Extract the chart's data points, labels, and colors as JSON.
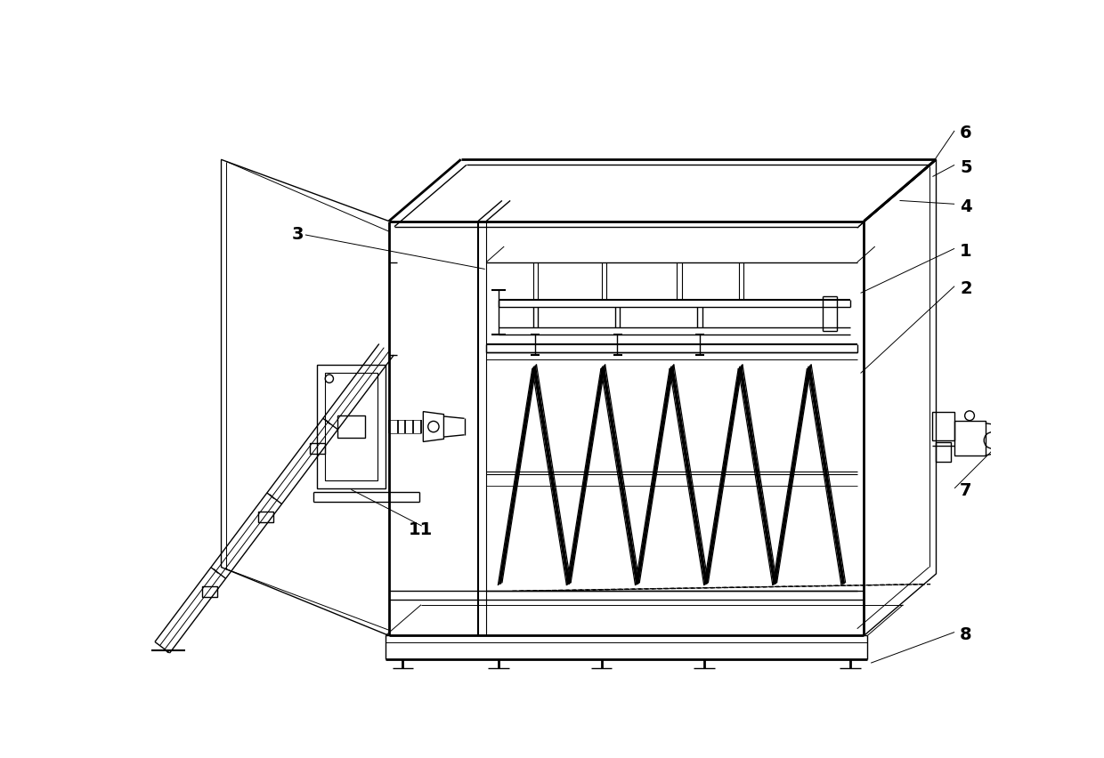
{
  "bg_color": "#ffffff",
  "line_color": "#000000",
  "lw": 1.0,
  "lw_thick": 2.0,
  "lw_med": 1.5,
  "fs": 14,
  "fw": "bold"
}
